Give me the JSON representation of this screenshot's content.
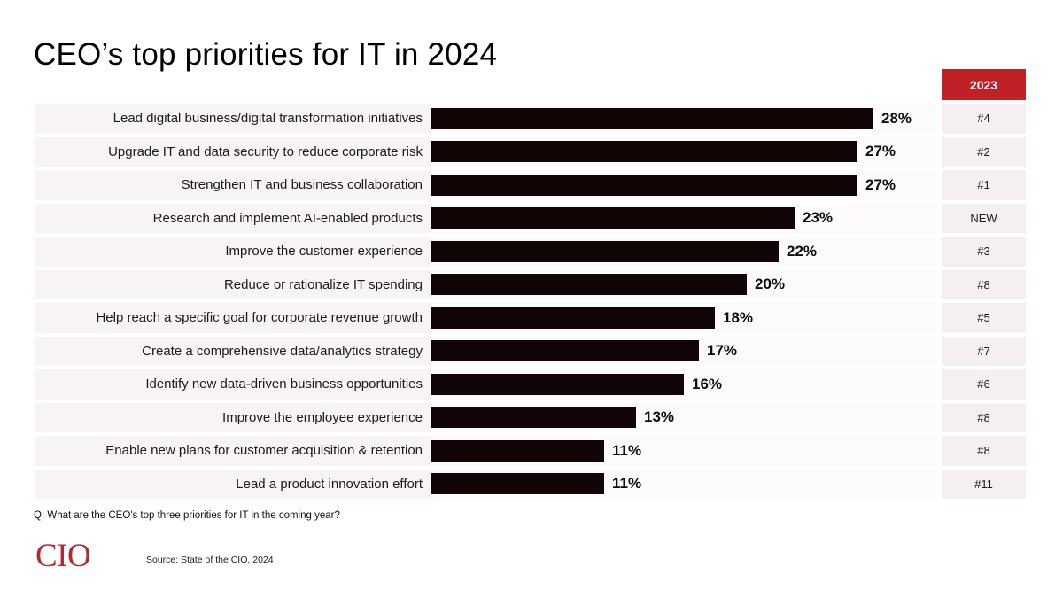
{
  "title": "CEO’s top priorities for IT in 2024",
  "year_column_header": "2023",
  "footnote": "Q: What are the CEO's top three priorities for IT in the coming year?",
  "logo_text": "CIO",
  "source": "Source: State of the CIO, 2024",
  "colors": {
    "header_red": "#bf2127",
    "bar_black": "#120506",
    "row_label_bg": "#f8f4f5",
    "rank_cell_bg": "#f5eff1",
    "bar_zone_bg": "#fcfafb",
    "logo_red": "#ad2b32"
  },
  "chart_data": {
    "type": "bar",
    "orientation": "horizontal",
    "title": "CEO’s top priorities for IT in 2024",
    "xlabel": "",
    "ylabel": "",
    "xlim": [
      0,
      31
    ],
    "grid": false,
    "legend": "none",
    "categories": [
      "Lead digital business/digital transformation initiatives",
      "Upgrade IT and data security to reduce corporate risk",
      "Strengthen IT and business collaboration",
      "Research and implement AI-enabled products",
      "Improve the customer experience",
      "Reduce or rationalize IT spending",
      "Help reach a specific goal for corporate revenue growth",
      "Create a comprehensive data/analytics strategy",
      "Identify new data-driven business opportunities",
      "Improve the employee experience",
      "Enable new plans for customer acquisition & retention",
      "Lead a product innovation effort"
    ],
    "values": [
      28,
      27,
      27,
      23,
      22,
      20,
      18,
      17,
      16,
      13,
      11,
      11
    ],
    "value_labels": [
      "28%",
      "27%",
      "27%",
      "23%",
      "22%",
      "20%",
      "18%",
      "17%",
      "16%",
      "13%",
      "11%",
      "11%"
    ],
    "rank_2023": [
      "#4",
      "#2",
      "#1",
      "NEW",
      "#3",
      "#8",
      "#5",
      "#7",
      "#6",
      "#8",
      "#8",
      "#11"
    ]
  }
}
